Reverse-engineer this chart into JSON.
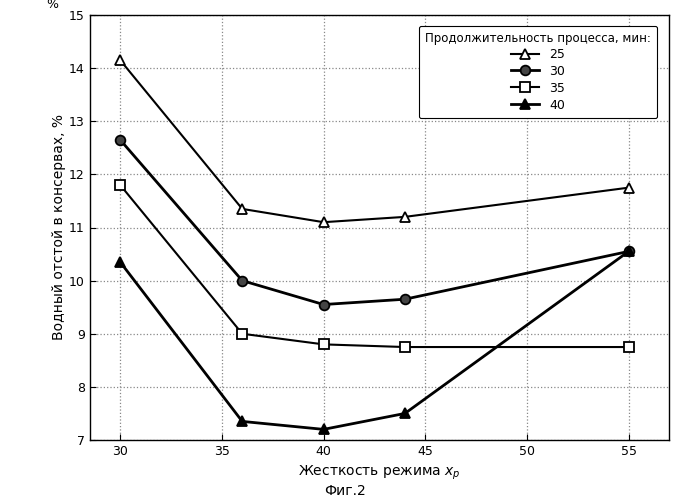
{
  "series": [
    {
      "label": "25",
      "x": [
        30,
        36,
        40,
        44,
        55
      ],
      "y": [
        14.15,
        11.35,
        11.1,
        11.2,
        11.75
      ],
      "marker": "^",
      "marker_size": 7,
      "marker_facecolor": "white",
      "marker_edgecolor": "black",
      "linewidth": 1.5,
      "color": "black",
      "linestyle": "-",
      "zorder": 3
    },
    {
      "label": "30",
      "x": [
        30,
        36,
        40,
        44,
        55
      ],
      "y": [
        12.65,
        10.0,
        9.55,
        9.65,
        10.55
      ],
      "marker": "o",
      "marker_size": 7,
      "marker_facecolor": "#444444",
      "marker_edgecolor": "black",
      "linewidth": 2.0,
      "color": "black",
      "linestyle": "-",
      "zorder": 4
    },
    {
      "label": "35",
      "x": [
        30,
        36,
        40,
        44,
        55
      ],
      "y": [
        11.8,
        9.0,
        8.8,
        8.75,
        8.75
      ],
      "marker": "s",
      "marker_size": 7,
      "marker_facecolor": "white",
      "marker_edgecolor": "black",
      "linewidth": 1.5,
      "color": "black",
      "linestyle": "-",
      "zorder": 3
    },
    {
      "label": "40",
      "x": [
        30,
        36,
        40,
        44,
        55
      ],
      "y": [
        10.35,
        7.35,
        7.2,
        7.5,
        10.55
      ],
      "marker": "^",
      "marker_size": 7,
      "marker_facecolor": "black",
      "marker_edgecolor": "black",
      "linewidth": 2.0,
      "color": "black",
      "linestyle": "-",
      "zorder": 4
    }
  ],
  "xlabel": "Жесткость режима $x_{р}$",
  "ylabel": "Водный отстой в консервах, %",
  "legend_title": "Продолжительность процесса, мин:",
  "fig_label": "Фиг.2",
  "xlim": [
    28.5,
    57
  ],
  "ylim": [
    7,
    15
  ],
  "xticks": [
    30,
    35,
    40,
    45,
    50,
    55
  ],
  "yticks": [
    7,
    8,
    9,
    10,
    11,
    12,
    13,
    14,
    15
  ],
  "background_color": "#ffffff",
  "grid_color": "#888888",
  "grid_linestyle": ":",
  "grid_linewidth": 0.9
}
